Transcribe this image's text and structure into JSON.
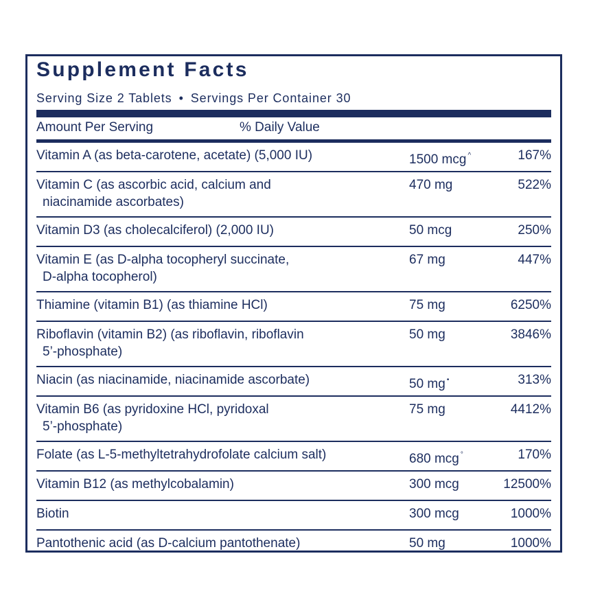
{
  "title": "Supplement Facts",
  "serving": {
    "size": "Serving Size 2 Tablets",
    "bullet": "•",
    "per_container": "Servings Per Container 30"
  },
  "header": {
    "amount": "Amount Per Serving",
    "daily_value": "% Daily Value"
  },
  "rows": [
    {
      "line1": "Vitamin A (as beta-carotene, acetate) (5,000 IU)",
      "line2": "",
      "amount": "1500 mcg",
      "mark": "^",
      "dv": "167%"
    },
    {
      "line1": "Vitamin C (as ascorbic acid, calcium and",
      "line2": "niacinamide ascorbates)",
      "amount": "470 mg",
      "mark": "",
      "dv": "522%"
    },
    {
      "line1": "Vitamin D3 (as cholecalciferol) (2,000 IU)",
      "line2": "",
      "amount": "50 mcg",
      "mark": "",
      "dv": "250%"
    },
    {
      "line1": "Vitamin E (as D-alpha tocopheryl succinate,",
      "line2": "D-alpha tocopherol)",
      "amount": "67 mg",
      "mark": "",
      "dv": "447%"
    },
    {
      "line1": "Thiamine (vitamin B1) (as thiamine HCl)",
      "line2": "",
      "amount": "75 mg",
      "mark": "",
      "dv": "6250%"
    },
    {
      "line1": "Riboflavin (vitamin B2) (as riboflavin, riboflavin",
      "line2": "5’-phosphate)",
      "amount": "50 mg",
      "mark": "",
      "dv": "3846%"
    },
    {
      "line1": "Niacin (as niacinamide, niacinamide ascorbate)",
      "line2": "",
      "amount": "50 mg",
      "mark": "•",
      "dv": "313%"
    },
    {
      "line1": "Vitamin B6 (as pyridoxine HCl, pyridoxal",
      "line2": "5’-phosphate)",
      "amount": "75 mg",
      "mark": "",
      "dv": "4412%"
    },
    {
      "line1": "Folate (as L-5-methyltetrahydrofolate calcium salt)",
      "line2": "",
      "amount": "680 mcg",
      "mark": "°",
      "dv": "170%"
    },
    {
      "line1": "Vitamin B12 (as methylcobalamin)",
      "line2": "",
      "amount": "300 mcg",
      "mark": "",
      "dv": "12500%"
    },
    {
      "line1": "Biotin",
      "line2": "",
      "amount": "300 mcg",
      "mark": "",
      "dv": "1000%"
    },
    {
      "line1": "Pantothenic acid (as D-calcium pantothenate)",
      "line2": "",
      "amount": "50 mg",
      "mark": "",
      "dv": "1000%"
    }
  ],
  "colors": {
    "ink": "#1c2d5e",
    "background": "#ffffff"
  }
}
